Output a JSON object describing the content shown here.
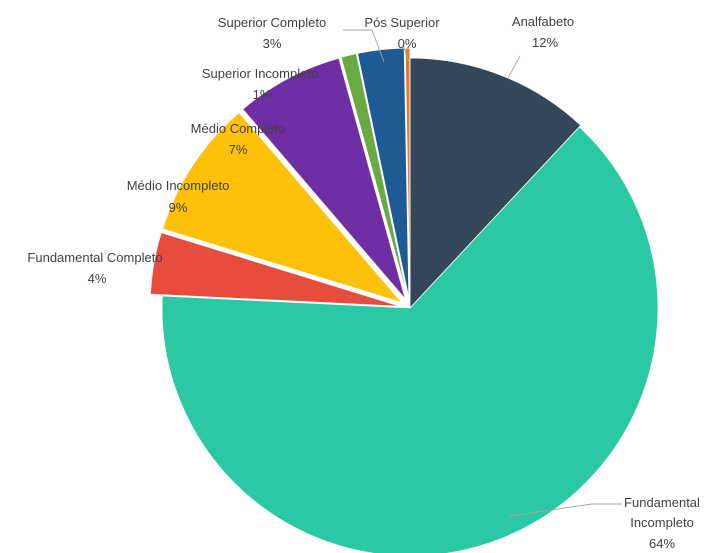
{
  "chart_data": {
    "type": "pie",
    "exploded": true,
    "title": "",
    "legend": "none",
    "slices": [
      {
        "label": "Analfabeto",
        "value": 12,
        "value_label": "12%",
        "color": "#344659"
      },
      {
        "label": "Fundamental Incompleto",
        "value": 64,
        "value_label": "64%",
        "color": "#2bc8a4"
      },
      {
        "label": "Fundamental Completo",
        "value": 4,
        "value_label": "4%",
        "color": "#e84c3d"
      },
      {
        "label": "Médio Incompleto",
        "value": 9,
        "value_label": "9%",
        "color": "#fec10a"
      },
      {
        "label": "Médio Completo",
        "value": 7,
        "value_label": "7%",
        "color": "#6f2ea3"
      },
      {
        "label": "Superior Incompleto",
        "value": 1,
        "value_label": "1%",
        "color": "#6aaa43"
      },
      {
        "label": "Superior Completo",
        "value": 3,
        "value_label": "3%",
        "color": "#1e5a94"
      },
      {
        "label": "Pós Superior",
        "value": 0.3,
        "value_label": "0%",
        "color": "#e8772e"
      }
    ]
  }
}
